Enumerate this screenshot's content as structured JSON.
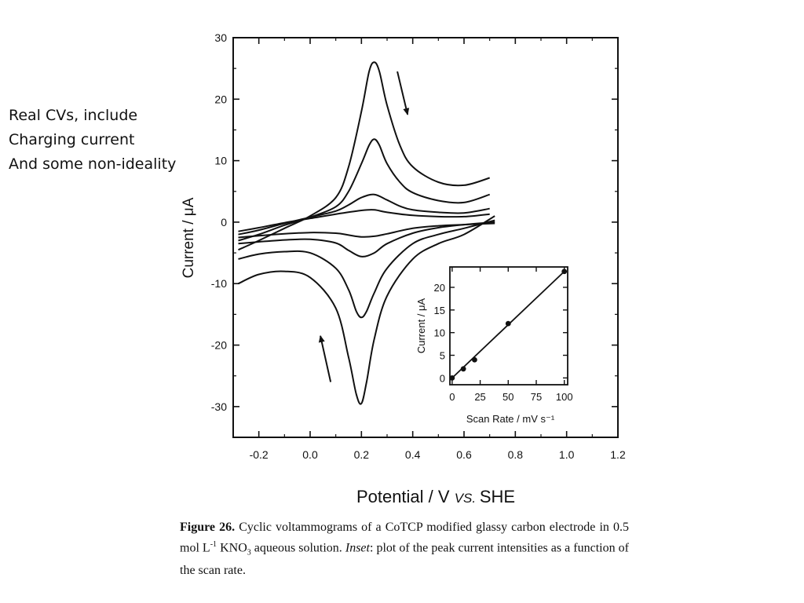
{
  "side_note": {
    "lines": [
      "Real CVs, include",
      "Charging current",
      "And some non-ideality"
    ]
  },
  "chart_data": [
    {
      "type": "line",
      "xlabel": "Potential / V",
      "xlabel_italic_suffix": "VS.",
      "xlabel_end": "SHE",
      "ylabel": "Current  /  μA",
      "xlim": [
        -0.3,
        1.2
      ],
      "ylim": [
        -35,
        30
      ],
      "x_ticks": [
        -0.2,
        0.0,
        0.2,
        0.4,
        0.6,
        0.8,
        1.0,
        1.2
      ],
      "x_tick_labels": [
        "-0.2",
        "0.0",
        "0.2",
        "0.4",
        "0.6",
        "0.8",
        "1.0",
        "1.2"
      ],
      "y_ticks": [
        30,
        20,
        10,
        0,
        -10,
        -20,
        -30
      ],
      "y_tick_labels": [
        "30",
        "20",
        "10",
        "0",
        "-10",
        "-20",
        "-30"
      ],
      "grid": false,
      "annotations": [
        {
          "type": "arrow",
          "x": [
            0.34,
            0.38
          ],
          "y": [
            24.5,
            17.5
          ]
        },
        {
          "type": "arrow",
          "x": [
            0.08,
            0.04
          ],
          "y": [
            -26,
            -18.5
          ]
        }
      ],
      "series": [
        {
          "forward": {
            "x": [
              -0.28,
              -0.2,
              -0.1,
              0.0,
              0.1,
              0.15,
              0.2,
              0.23,
              0.25,
              0.27,
              0.3,
              0.35,
              0.4,
              0.5,
              0.6,
              0.7
            ],
            "y": [
              -4.5,
              -3.0,
              -1.0,
              1.0,
              4.0,
              9.0,
              18.0,
              24.5,
              26.0,
              24.5,
              19.0,
              12.5,
              9.0,
              6.5,
              6.0,
              7.2
            ]
          },
          "reverse": {
            "x": [
              0.72,
              0.6,
              0.5,
              0.4,
              0.3,
              0.25,
              0.22,
              0.2,
              0.18,
              0.15,
              0.1,
              0.0,
              -0.1,
              -0.2,
              -0.28
            ],
            "y": [
              1.0,
              -2.0,
              -3.5,
              -6.0,
              -12.0,
              -19.0,
              -26.0,
              -29.5,
              -28.0,
              -22.0,
              -14.0,
              -9.0,
              -8.0,
              -8.5,
              -10.0
            ]
          }
        },
        {
          "forward": {
            "x": [
              -0.28,
              -0.2,
              -0.1,
              0.0,
              0.1,
              0.15,
              0.2,
              0.23,
              0.25,
              0.27,
              0.3,
              0.35,
              0.4,
              0.5,
              0.6,
              0.7
            ],
            "y": [
              -3.0,
              -2.0,
              -0.5,
              0.8,
              2.5,
              5.0,
              9.5,
              12.5,
              13.5,
              12.5,
              9.5,
              6.5,
              4.8,
              3.5,
              3.2,
              4.5
            ]
          },
          "reverse": {
            "x": [
              0.72,
              0.6,
              0.5,
              0.4,
              0.3,
              0.25,
              0.22,
              0.2,
              0.18,
              0.15,
              0.1,
              0.0,
              -0.1,
              -0.2,
              -0.28
            ],
            "y": [
              0.3,
              -1.0,
              -2.0,
              -3.5,
              -7.5,
              -11.5,
              -14.5,
              -15.5,
              -14.5,
              -11.0,
              -7.5,
              -5.0,
              -4.8,
              -5.2,
              -6.0
            ]
          }
        },
        {
          "forward": {
            "x": [
              -0.28,
              -0.2,
              -0.1,
              0.0,
              0.1,
              0.15,
              0.2,
              0.25,
              0.3,
              0.35,
              0.4,
              0.5,
              0.6,
              0.7
            ],
            "y": [
              -2.0,
              -1.3,
              -0.2,
              0.8,
              1.8,
              2.8,
              4.0,
              4.5,
              3.6,
              2.6,
              2.0,
              1.6,
              1.5,
              2.2
            ]
          },
          "reverse": {
            "x": [
              0.72,
              0.6,
              0.5,
              0.4,
              0.3,
              0.25,
              0.2,
              0.15,
              0.1,
              0.0,
              -0.1,
              -0.2,
              -0.28
            ],
            "y": [
              0.0,
              -0.4,
              -0.9,
              -1.8,
              -3.5,
              -5.0,
              -5.6,
              -4.6,
              -3.4,
              -2.8,
              -2.9,
              -3.2,
              -3.5
            ]
          }
        },
        {
          "forward": {
            "x": [
              -0.28,
              -0.2,
              -0.1,
              0.0,
              0.1,
              0.2,
              0.25,
              0.3,
              0.4,
              0.5,
              0.6,
              0.7
            ],
            "y": [
              -1.5,
              -0.9,
              -0.1,
              0.6,
              1.3,
              1.9,
              2.0,
              1.6,
              1.1,
              0.9,
              0.9,
              1.3
            ]
          },
          "reverse": {
            "x": [
              0.72,
              0.6,
              0.5,
              0.4,
              0.3,
              0.25,
              0.2,
              0.15,
              0.1,
              0.0,
              -0.1,
              -0.2,
              -0.28
            ],
            "y": [
              -0.2,
              -0.4,
              -0.6,
              -1.0,
              -1.9,
              -2.3,
              -2.4,
              -2.1,
              -1.8,
              -1.7,
              -1.9,
              -2.2,
              -2.5
            ]
          }
        }
      ]
    },
    {
      "type": "scatter",
      "inset": true,
      "xlabel": "Scan Rate  /  mV s⁻¹",
      "ylabel": "Current  /  μA",
      "xlim": [
        -2,
        103
      ],
      "ylim": [
        -1.5,
        24.5
      ],
      "x_ticks": [
        0,
        25,
        50,
        75,
        100
      ],
      "x_tick_labels": [
        "0",
        "25",
        "50",
        "75",
        "100"
      ],
      "y_ticks": [
        0,
        5,
        10,
        15,
        20
      ],
      "y_tick_labels": [
        "0",
        "5",
        "10",
        "15",
        "20"
      ],
      "points": {
        "x": [
          0,
          10,
          20,
          50,
          100
        ],
        "y": [
          0,
          2,
          4,
          12,
          23.5
        ]
      },
      "fit_line": {
        "x": [
          0,
          100
        ],
        "y": [
          0,
          23.5
        ]
      }
    }
  ],
  "caption": {
    "figure_label": "Figure 26.",
    "text_1": " Cyclic voltammograms of a CoTCP modified glassy carbon electrode in 0.5 mol L",
    "sup": "-1",
    "text_2": " KNO",
    "sub": "3",
    "text_3": " aqueous solution. ",
    "inset_word": "Inset",
    "text_4": ": plot of the peak current intensities as a function of the scan rate."
  }
}
